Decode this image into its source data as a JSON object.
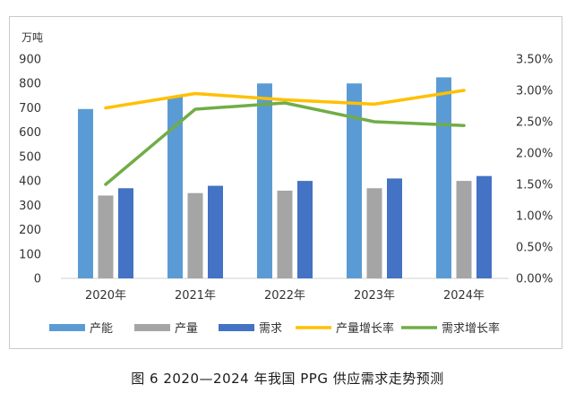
{
  "caption": "图 6  2020—2024 年我国 PPG 供应需求走势预测",
  "chart_data": {
    "type": "bar",
    "unit_label": "万吨",
    "categories": [
      "2020年",
      "2021年",
      "2022年",
      "2023年",
      "2024年"
    ],
    "ylim": [
      0,
      900
    ],
    "y_ticks": [
      "0",
      "100",
      "200",
      "300",
      "400",
      "500",
      "600",
      "700",
      "800",
      "900"
    ],
    "y2lim": [
      0,
      0.035
    ],
    "y2_ticks": [
      "0.00%",
      "0.50%",
      "1.00%",
      "1.50%",
      "2.00%",
      "2.50%",
      "3.00%",
      "3.50%"
    ],
    "grid": false,
    "legend_position": "bottom",
    "series": [
      {
        "name": "产能",
        "type": "bar",
        "axis": "left",
        "color": "#5b9bd5",
        "values": [
          695,
          745,
          800,
          800,
          825
        ]
      },
      {
        "name": "产量",
        "type": "bar",
        "axis": "left",
        "color": "#a5a5a5",
        "values": [
          340,
          350,
          360,
          370,
          400
        ]
      },
      {
        "name": "需求",
        "type": "bar",
        "axis": "left",
        "color": "#4472c4",
        "values": [
          370,
          380,
          400,
          410,
          420
        ]
      },
      {
        "name": "产量增长率",
        "type": "line",
        "axis": "right",
        "color": "#ffc000",
        "values": [
          0.0272,
          0.0295,
          0.0285,
          0.0278,
          0.03
        ]
      },
      {
        "name": "需求增长率",
        "type": "line",
        "axis": "right",
        "color": "#70ad47",
        "values": [
          0.015,
          0.027,
          0.028,
          0.025,
          0.0244
        ]
      }
    ]
  }
}
